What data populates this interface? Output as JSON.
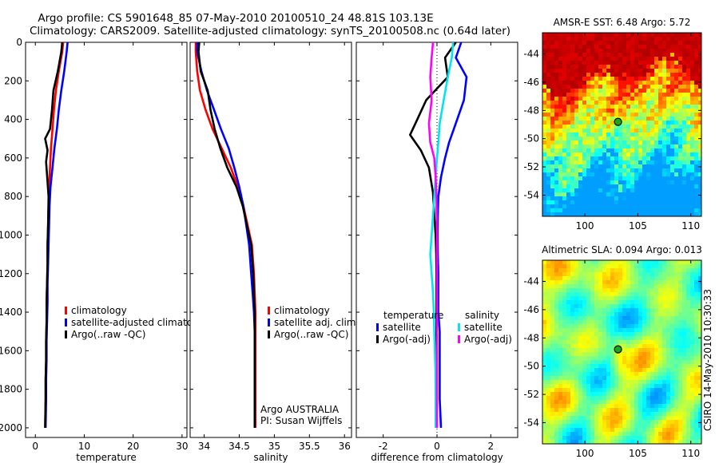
{
  "header": {
    "line1": "Argo profile: CS 5901648_85 07-May-2010 20100510_24 48.81S 103.13E",
    "line2": "Climatology: CARS2009. Satellite-adjusted climatology: synTS_20100508.nc (0.64d later)"
  },
  "side_label": "CSIRO 14-May-2010 10:30:33",
  "chart_data": [
    {
      "type": "line",
      "xlabel": "temperature",
      "xlim": [
        -2,
        31
      ],
      "ylim": [
        0,
        2050
      ],
      "y_reversed": true,
      "xticks": [
        0,
        10,
        20,
        30
      ],
      "yticks": [
        0,
        200,
        400,
        600,
        800,
        1000,
        1200,
        1400,
        1600,
        1800,
        2000
      ],
      "legend": [
        "climatology",
        "satellite-adjusted climatolog",
        "Argo(..raw -QC)"
      ],
      "series": [
        {
          "name": "climatology",
          "color": "#ff0000",
          "x": [
            5.7,
            5.5,
            4.8,
            4.2,
            3.8,
            3.5,
            3.2,
            3.0,
            2.8,
            2.7,
            2.6,
            2.5,
            2.5,
            2.4,
            2.3,
            2.3,
            2.2,
            2.2,
            2.1,
            2.1,
            2.0
          ],
          "y": [
            0,
            50,
            150,
            250,
            350,
            450,
            550,
            650,
            750,
            850,
            950,
            1050,
            1150,
            1250,
            1350,
            1450,
            1550,
            1650,
            1750,
            1850,
            2000
          ]
        },
        {
          "name": "satellite-adjusted climatolog",
          "color": "#0000ff",
          "x": [
            6.6,
            6.4,
            5.9,
            5.3,
            4.8,
            4.4,
            3.9,
            3.5,
            3.1,
            2.9,
            2.8,
            2.7,
            2.6,
            2.5,
            2.5,
            2.4,
            2.3,
            2.3,
            2.2,
            2.2,
            2.1
          ],
          "y": [
            0,
            50,
            150,
            250,
            350,
            450,
            550,
            650,
            750,
            850,
            950,
            1050,
            1150,
            1250,
            1350,
            1450,
            1550,
            1650,
            1750,
            1850,
            2000
          ]
        },
        {
          "name": "Argo(..raw -QC)",
          "color": "#000000",
          "x": [
            5.5,
            5.3,
            4.6,
            3.7,
            3.4,
            3.0,
            2.0,
            2.5,
            2.2,
            2.7,
            2.6,
            2.5,
            2.5,
            2.4,
            2.3,
            2.3,
            2.2,
            2.2,
            2.1,
            2.1,
            2.0
          ],
          "y": [
            0,
            50,
            150,
            250,
            350,
            450,
            500,
            560,
            620,
            800,
            950,
            1050,
            1150,
            1250,
            1350,
            1450,
            1550,
            1650,
            1750,
            1850,
            2000
          ]
        }
      ]
    },
    {
      "type": "line",
      "xlabel": "salinity",
      "xlim": [
        33.8,
        36.1
      ],
      "ylim": [
        0,
        2050
      ],
      "y_reversed": true,
      "xticks": [
        34,
        34.5,
        35,
        35.5,
        36
      ],
      "xticklabels": [
        "34",
        "34.5",
        "35",
        "35.5",
        "36"
      ],
      "legend": [
        "climatology",
        "satellite adj. clim.",
        "Argo(..raw -QC)"
      ],
      "annotations": [
        "Argo AUSTRALIA",
        "PI: Susan Wijffels"
      ],
      "series": [
        {
          "name": "climatology",
          "color": "#ff0000",
          "x": [
            33.88,
            33.88,
            33.9,
            33.94,
            34.02,
            34.12,
            34.25,
            34.38,
            34.48,
            34.56,
            34.62,
            34.68,
            34.71,
            34.72,
            34.73,
            34.73,
            34.73,
            34.73,
            34.73,
            34.73
          ],
          "y": [
            0,
            50,
            150,
            250,
            350,
            450,
            550,
            650,
            750,
            850,
            950,
            1050,
            1200,
            1300,
            1400,
            1500,
            1600,
            1700,
            1850,
            2000
          ]
        },
        {
          "name": "satellite adj. clim.",
          "color": "#0000ff",
          "x": [
            33.9,
            33.9,
            33.96,
            34.04,
            34.14,
            34.24,
            34.35,
            34.43,
            34.5,
            34.56,
            34.6,
            34.64,
            34.67,
            34.69,
            34.71,
            34.72,
            34.72,
            34.72,
            34.72,
            34.72
          ],
          "y": [
            0,
            50,
            150,
            250,
            350,
            450,
            550,
            650,
            750,
            850,
            950,
            1050,
            1200,
            1300,
            1400,
            1500,
            1600,
            1700,
            1850,
            2000
          ]
        },
        {
          "name": "Argo(..raw -QC)",
          "color": "#000000",
          "x": [
            33.93,
            33.92,
            33.95,
            34.05,
            34.09,
            34.15,
            34.23,
            34.33,
            34.46,
            34.55,
            34.61,
            34.67,
            34.7,
            34.71,
            34.72,
            34.72,
            34.72,
            34.72,
            34.72,
            34.72
          ],
          "y": [
            0,
            50,
            150,
            250,
            350,
            450,
            550,
            650,
            750,
            850,
            950,
            1050,
            1200,
            1300,
            1400,
            1500,
            1600,
            1700,
            1850,
            2000
          ]
        }
      ]
    },
    {
      "type": "line",
      "xlabel": "difference from climatology",
      "xlim": [
        -3.0,
        3.0
      ],
      "ylim": [
        0,
        2050
      ],
      "y_reversed": true,
      "xticks": [
        -2,
        0,
        2
      ],
      "legend_titles": [
        "temperature",
        "salinity"
      ],
      "legend": [
        "satellite",
        "Argo(-adj)",
        "satellite",
        "Argo(-adj)"
      ],
      "series": [
        {
          "name": "satellite",
          "group": "temperature",
          "color": "#0000ff",
          "x": [
            0.9,
            0.7,
            1.1,
            1.0,
            0.7,
            0.45,
            0.3,
            0.15,
            0.05,
            0.03,
            0.02,
            0.03,
            0.05,
            0.05,
            0.05,
            0.1,
            0.1,
            0.1,
            0.1,
            0.15
          ],
          "y": [
            0,
            80,
            180,
            300,
            420,
            520,
            600,
            700,
            800,
            900,
            1000,
            1100,
            1200,
            1300,
            1400,
            1500,
            1600,
            1700,
            1850,
            2000
          ]
        },
        {
          "name": "Argo(-adj)",
          "group": "temperature",
          "color": "#000000",
          "x": [
            0.7,
            0.3,
            0.4,
            -0.4,
            -0.8,
            -1.0,
            -0.6,
            -0.3,
            -0.15,
            -0.1,
            -0.05,
            -0.03,
            -0.02,
            -0.02,
            -0.02,
            -0.02,
            -0.02,
            -0.02,
            -0.02,
            -0.02
          ],
          "y": [
            0,
            80,
            180,
            300,
            420,
            480,
            560,
            650,
            780,
            900,
            1000,
            1100,
            1200,
            1300,
            1400,
            1500,
            1600,
            1700,
            1850,
            2000
          ]
        },
        {
          "name": "satellite",
          "group": "salinity",
          "color": "#00e5ee",
          "x": [
            0.6,
            0.55,
            0.4,
            0.25,
            0.1,
            0.05,
            0.0,
            -0.05,
            -0.1,
            -0.15,
            -0.2,
            -0.25,
            -0.2,
            -0.15,
            -0.12,
            -0.1,
            -0.08,
            -0.06,
            -0.05,
            -0.05
          ],
          "y": [
            0,
            80,
            180,
            300,
            420,
            520,
            600,
            700,
            800,
            900,
            1000,
            1100,
            1200,
            1300,
            1400,
            1500,
            1600,
            1700,
            1850,
            2000
          ]
        },
        {
          "name": "Argo(-adj)",
          "group": "salinity",
          "color": "#ff00ff",
          "x": [
            -0.15,
            -0.2,
            -0.25,
            -0.2,
            -0.3,
            -0.25,
            -0.1,
            -0.05,
            -0.02,
            -0.01,
            0.0,
            0.0,
            0.0,
            0.0,
            0.0,
            0.0,
            0.0,
            0.0,
            0.0,
            0.0
          ],
          "y": [
            0,
            80,
            180,
            300,
            420,
            520,
            600,
            700,
            800,
            900,
            1000,
            1100,
            1200,
            1300,
            1400,
            1500,
            1600,
            1700,
            1850,
            2000
          ]
        }
      ]
    },
    {
      "type": "heatmap",
      "title": "AMSR-E SST: 6.48 Argo: 5.72",
      "xlim": [
        96,
        111
      ],
      "ylim": [
        -55.5,
        -42.5
      ],
      "xticks": [
        100,
        105,
        110
      ],
      "yticks": [
        -44,
        -46,
        -48,
        -50,
        -52,
        -54
      ],
      "marker": {
        "lon": 103.13,
        "lat": -48.81
      }
    },
    {
      "type": "heatmap",
      "title": "Altimetric SLA: 0.094 Argo: 0.013",
      "xlim": [
        96,
        111
      ],
      "ylim": [
        -55.5,
        -42.5
      ],
      "xticks": [
        100,
        105,
        110
      ],
      "yticks": [
        -44,
        -46,
        -48,
        -50,
        -52,
        -54
      ],
      "marker": {
        "lon": 103.13,
        "lat": -48.81
      }
    }
  ]
}
